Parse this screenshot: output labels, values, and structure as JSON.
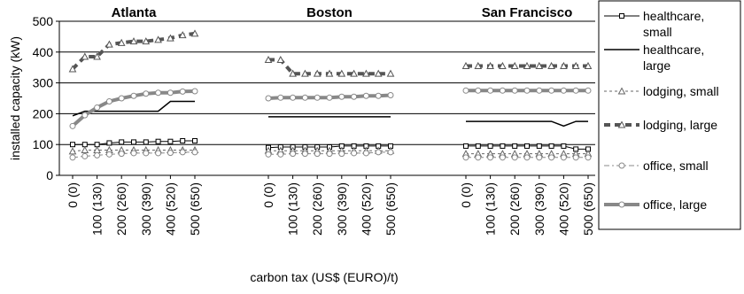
{
  "chart_data": {
    "type": "line",
    "ylabel": "installed capacity (kW)",
    "xlabel": "carbon tax (US$ (EURO)/t)",
    "ylim": [
      0,
      500
    ],
    "yticks": [
      0,
      100,
      200,
      300,
      400,
      500
    ],
    "grid": true,
    "legend_position": "right",
    "x_tick_labels": [
      "0 (0)",
      "100 (130)",
      "200 (260)",
      "300 (390)",
      "400 (520)",
      "500 (650)"
    ],
    "x_values": [
      0,
      50,
      100,
      150,
      200,
      250,
      300,
      350,
      400,
      450,
      500
    ],
    "panels": [
      {
        "title": "Atlanta",
        "series": [
          {
            "name": "healthcare, small",
            "values": [
              100,
              100,
              100,
              105,
              108,
              108,
              108,
              110,
              110,
              112,
              112
            ]
          },
          {
            "name": "healthcare, large",
            "values": [
              193,
              208,
              208,
              208,
              208,
              208,
              208,
              208,
              240,
              240,
              240
            ]
          },
          {
            "name": "lodging, small",
            "values": [
              78,
              82,
              82,
              82,
              82,
              82,
              82,
              82,
              82,
              82,
              82
            ]
          },
          {
            "name": "lodging, large",
            "values": [
              345,
              385,
              385,
              425,
              430,
              435,
              435,
              440,
              445,
              455,
              460
            ]
          },
          {
            "name": "office, small",
            "values": [
              58,
              62,
              65,
              68,
              70,
              72,
              72,
              72,
              73,
              75,
              75
            ]
          },
          {
            "name": "office, large",
            "values": [
              160,
              195,
              220,
              240,
              250,
              258,
              265,
              268,
              268,
              272,
              273
            ]
          }
        ]
      },
      {
        "title": "Boston",
        "series": [
          {
            "name": "healthcare, small",
            "values": [
              90,
              92,
              92,
              92,
              92,
              92,
              95,
              95,
              95,
              95,
              95
            ]
          },
          {
            "name": "healthcare, large",
            "values": [
              190,
              190,
              190,
              190,
              190,
              190,
              190,
              190,
              190,
              190,
              190
            ]
          },
          {
            "name": "lodging, small",
            "values": [
              80,
              80,
              80,
              80,
              80,
              80,
              80,
              80,
              80,
              80,
              80
            ]
          },
          {
            "name": "lodging, large",
            "values": [
              375,
              375,
              330,
              330,
              330,
              330,
              330,
              330,
              330,
              330,
              330
            ]
          },
          {
            "name": "office, small",
            "values": [
              68,
              68,
              70,
              70,
              70,
              70,
              70,
              72,
              72,
              75,
              75
            ]
          },
          {
            "name": "office, large",
            "values": [
              250,
              252,
              252,
              252,
              252,
              252,
              255,
              255,
              258,
              258,
              260
            ]
          }
        ]
      },
      {
        "title": "San Francisco",
        "series": [
          {
            "name": "healthcare, small",
            "values": [
              95,
              95,
              95,
              95,
              95,
              95,
              95,
              95,
              95,
              85,
              85
            ]
          },
          {
            "name": "healthcare, large",
            "values": [
              175,
              175,
              175,
              175,
              175,
              175,
              175,
              175,
              160,
              175,
              175
            ]
          },
          {
            "name": "lodging, small",
            "values": [
              70,
              70,
              70,
              70,
              70,
              70,
              70,
              70,
              70,
              70,
              70
            ]
          },
          {
            "name": "lodging, large",
            "values": [
              355,
              355,
              355,
              355,
              355,
              355,
              355,
              355,
              355,
              355,
              355
            ]
          },
          {
            "name": "office, small",
            "values": [
              58,
              58,
              58,
              58,
              58,
              58,
              58,
              58,
              58,
              58,
              58
            ]
          },
          {
            "name": "office, large",
            "values": [
              275,
              275,
              275,
              275,
              275,
              275,
              275,
              275,
              275,
              275,
              275
            ]
          }
        ]
      }
    ],
    "legend": [
      {
        "label": "healthcare, small",
        "key": "healthcare, small"
      },
      {
        "label": "healthcare, large",
        "key": "healthcare, large"
      },
      {
        "label": "lodging, small",
        "key": "lodging, small"
      },
      {
        "label": "lodging, large",
        "key": "lodging, large"
      },
      {
        "label": "office, small",
        "key": "office, small"
      },
      {
        "label": "office, large",
        "key": "office, large"
      }
    ],
    "series_style": {
      "healthcare, small": {
        "color": "#000000",
        "marker": "square",
        "dash": "solid",
        "width": 1
      },
      "healthcare, large": {
        "color": "#000000",
        "marker": "none",
        "dash": "solid",
        "width": 1.5
      },
      "lodging, small": {
        "color": "#666666",
        "marker": "triangle",
        "dash": "dash",
        "width": 1
      },
      "lodging, large": {
        "color": "#555555",
        "marker": "triangle",
        "dash": "bold-dash",
        "width": 4
      },
      "office, small": {
        "color": "#888888",
        "marker": "circle",
        "dash": "dashdot",
        "width": 1
      },
      "office, large": {
        "color": "#888888",
        "marker": "circle",
        "dash": "solid",
        "width": 4
      }
    }
  }
}
